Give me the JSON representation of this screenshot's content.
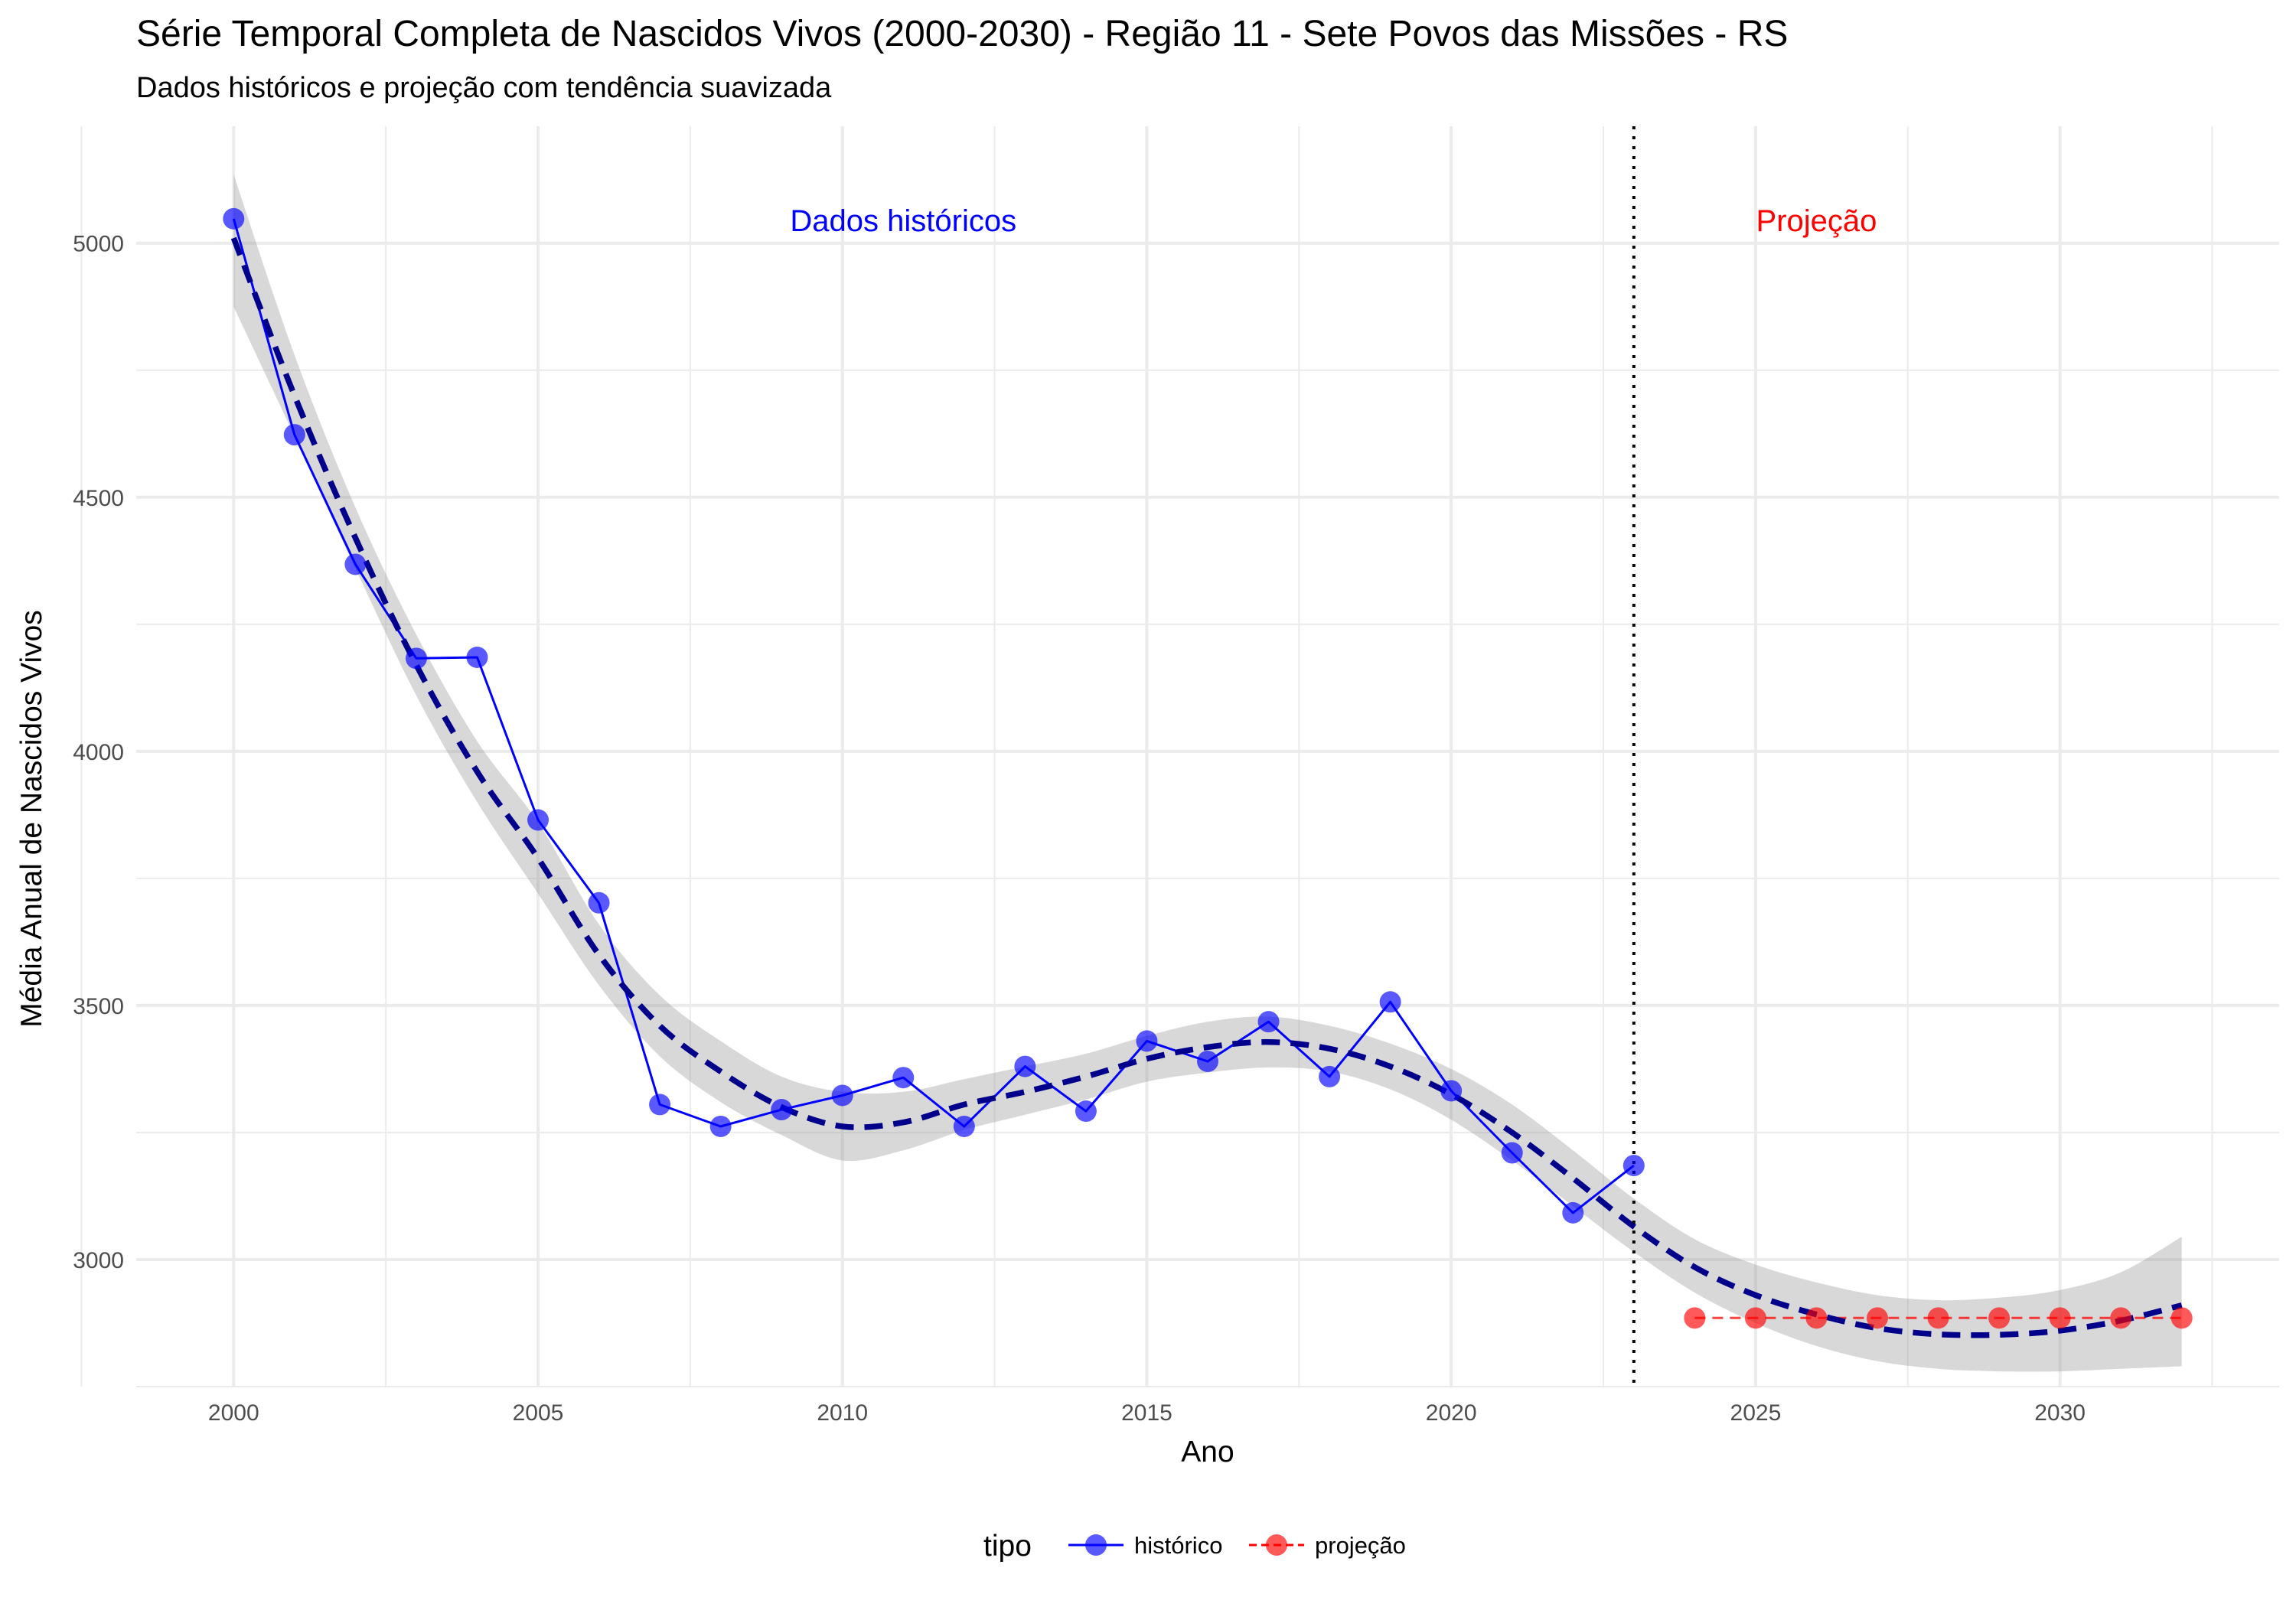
{
  "title": "Série Temporal Completa de Nascidos Vivos (2000-2030) -  Região 11 - Sete Povos das Missões - RS",
  "subtitle": "Dados históricos e projeção com tendência suavizada",
  "chart_data": {
    "type": "line",
    "title": "Série Temporal Completa de Nascidos Vivos (2000-2030) -  Região 11 - Sete Povos das Missões - RS",
    "subtitle": "Dados históricos e projeção com tendência suavizada",
    "xlabel": "Ano",
    "ylabel": "Média Anual de Nascidos Vivos",
    "xlim": [
      1998.4,
      2033.6
    ],
    "ylim": [
      2750,
      5230
    ],
    "x_ticks": [
      2000,
      2005,
      2010,
      2015,
      2020,
      2025,
      2030
    ],
    "y_ticks": [
      3000,
      3500,
      4000,
      4500,
      5000
    ],
    "grid": true,
    "legend": {
      "title": "tipo",
      "position": "bottom",
      "entries": [
        "histórico",
        "projeção"
      ]
    },
    "cutoff_year": 2023,
    "annotations": [
      {
        "text": "Dados históricos",
        "x": 2011,
        "y": 5045,
        "color": "#0000ff"
      },
      {
        "text": "Projeção",
        "x": 2026,
        "y": 5045,
        "color": "#ff0000"
      }
    ],
    "series": [
      {
        "name": "histórico",
        "color": "#0000ff",
        "x": [
          2000,
          2001,
          2002,
          2003,
          2004,
          2005,
          2006,
          2007,
          2008,
          2009,
          2010,
          2011,
          2012,
          2013,
          2014,
          2015,
          2016,
          2017,
          2018,
          2019,
          2020,
          2021,
          2022,
          2023
        ],
        "y": [
          5048,
          4623,
          4368,
          4183,
          4185,
          3865,
          3702,
          3305,
          3262,
          3295,
          3323,
          3358,
          3262,
          3380,
          3292,
          3430,
          3390,
          3468,
          3360,
          3507,
          3332,
          3210,
          3092,
          3185
        ]
      },
      {
        "name": "projeção",
        "color": "#ff0000",
        "x": [
          2024,
          2025,
          2026,
          2027,
          2028,
          2029,
          2030,
          2031,
          2032
        ],
        "y": [
          2885,
          2885,
          2885,
          2885,
          2885,
          2885,
          2885,
          2885,
          2885
        ]
      }
    ],
    "trend": {
      "color": "#00008b",
      "x": [
        2000,
        2001,
        2002,
        2003,
        2004,
        2005,
        2006,
        2007,
        2008,
        2009,
        2010,
        2011,
        2012,
        2013,
        2014,
        2015,
        2016,
        2017,
        2018,
        2019,
        2020,
        2021,
        2022,
        2023,
        2024,
        2025,
        2026,
        2027,
        2028,
        2029,
        2030,
        2031,
        2032
      ],
      "y": [
        5010,
        4700,
        4420,
        4170,
        3960,
        3790,
        3600,
        3460,
        3370,
        3300,
        3262,
        3270,
        3305,
        3330,
        3360,
        3395,
        3418,
        3428,
        3415,
        3380,
        3325,
        3250,
        3160,
        3065,
        2985,
        2930,
        2892,
        2865,
        2853,
        2852,
        2860,
        2880,
        2910
      ],
      "ci_lower": [
        4875,
        4620,
        4360,
        4110,
        3900,
        3720,
        3540,
        3400,
        3310,
        3245,
        3195,
        3215,
        3255,
        3285,
        3315,
        3350,
        3368,
        3378,
        3370,
        3335,
        3275,
        3195,
        3105,
        3015,
        2935,
        2875,
        2830,
        2800,
        2785,
        2780,
        2780,
        2785,
        2790
      ],
      "ci_upper": [
        5135,
        4780,
        4480,
        4230,
        4020,
        3860,
        3660,
        3520,
        3430,
        3360,
        3330,
        3330,
        3355,
        3380,
        3405,
        3440,
        3468,
        3478,
        3460,
        3425,
        3375,
        3305,
        3215,
        3120,
        3040,
        2990,
        2955,
        2930,
        2920,
        2925,
        2940,
        2975,
        3045
      ]
    }
  }
}
